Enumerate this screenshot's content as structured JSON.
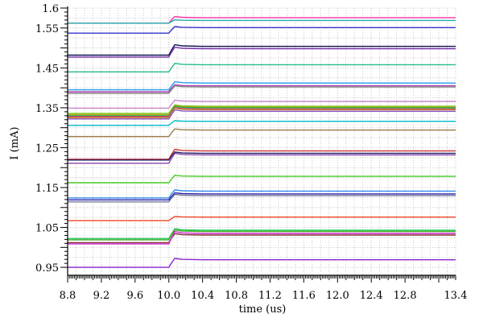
{
  "chart_data": {
    "type": "line",
    "title": "",
    "xlabel": "time (us)",
    "ylabel": "I (mA)",
    "xlim": [
      8.8,
      13.4
    ],
    "ylim": [
      0.93,
      1.6
    ],
    "grid": true,
    "legend": "none",
    "x_ticks": [
      8.8,
      9.2,
      9.6,
      10.0,
      10.4,
      10.8,
      11.2,
      11.6,
      12.0,
      12.4,
      12.8,
      13.4
    ],
    "x_tick_labels": [
      "8.8",
      "9.2",
      "9.6",
      "10.0",
      "10.4",
      "10.8",
      "11.2",
      "11.6",
      "12.0",
      "12.4",
      "12.8",
      "13.4"
    ],
    "y_ticks": [
      0.95,
      1.05,
      1.15,
      1.25,
      1.35,
      1.45,
      1.55,
      1.6
    ],
    "y_tick_labels": [
      "0.95",
      "1.05",
      "1.15",
      "1.25",
      "1.35",
      "1.45",
      "1.55",
      "1.6"
    ],
    "step_time": 10.0,
    "series": [
      {
        "color": "#ff33aa",
        "before": 1.562,
        "after": 1.576
      },
      {
        "color": "#22aaaa",
        "before": 1.562,
        "after": 1.569
      },
      {
        "color": "#3333cc",
        "before": 1.537,
        "after": 1.551
      },
      {
        "color": "#111155",
        "before": 1.482,
        "after": 1.504
      },
      {
        "color": "#7733aa",
        "before": 1.477,
        "after": 1.498
      },
      {
        "color": "#22bb88",
        "before": 1.44,
        "after": 1.458
      },
      {
        "color": "#2299ee",
        "before": 1.395,
        "after": 1.412
      },
      {
        "color": "#aa33aa",
        "before": 1.39,
        "after": 1.405
      },
      {
        "color": "#888888",
        "before": 1.386,
        "after": 1.402
      },
      {
        "color": "#cc88cc",
        "before": 1.349,
        "after": 1.366
      },
      {
        "color": "#88cc22",
        "before": 1.336,
        "after": 1.354
      },
      {
        "color": "#aaaa22",
        "before": 1.333,
        "after": 1.352
      },
      {
        "color": "#22aa44",
        "before": 1.33,
        "after": 1.35
      },
      {
        "color": "#cc3366",
        "before": 1.328,
        "after": 1.347
      },
      {
        "color": "#cc8833",
        "before": 1.325,
        "after": 1.345
      },
      {
        "color": "#8855cc",
        "before": 1.322,
        "after": 1.341
      },
      {
        "color": "#00bbcc",
        "before": 1.306,
        "after": 1.316
      },
      {
        "color": "#997744",
        "before": 1.278,
        "after": 1.294
      },
      {
        "color": "#cc3333",
        "before": 1.221,
        "after": 1.242
      },
      {
        "color": "#222266",
        "before": 1.219,
        "after": 1.236
      },
      {
        "color": "#8844aa",
        "before": 1.211,
        "after": 1.232
      },
      {
        "color": "#44cc22",
        "before": 1.162,
        "after": 1.178
      },
      {
        "color": "#3388ee",
        "before": 1.124,
        "after": 1.141
      },
      {
        "color": "#2222aa",
        "before": 1.119,
        "after": 1.134
      },
      {
        "color": "#777799",
        "before": 1.114,
        "after": 1.13
      },
      {
        "color": "#ee4422",
        "before": 1.067,
        "after": 1.076
      },
      {
        "color": "#22cc66",
        "before": 1.022,
        "after": 1.043
      },
      {
        "color": "#44aa22",
        "before": 1.019,
        "after": 1.04
      },
      {
        "color": "#883333",
        "before": 1.012,
        "after": 1.031
      },
      {
        "color": "#cc22cc",
        "before": 1.009,
        "after": 1.035
      },
      {
        "color": "#8822cc",
        "before": 0.95,
        "after": 0.969
      }
    ]
  }
}
